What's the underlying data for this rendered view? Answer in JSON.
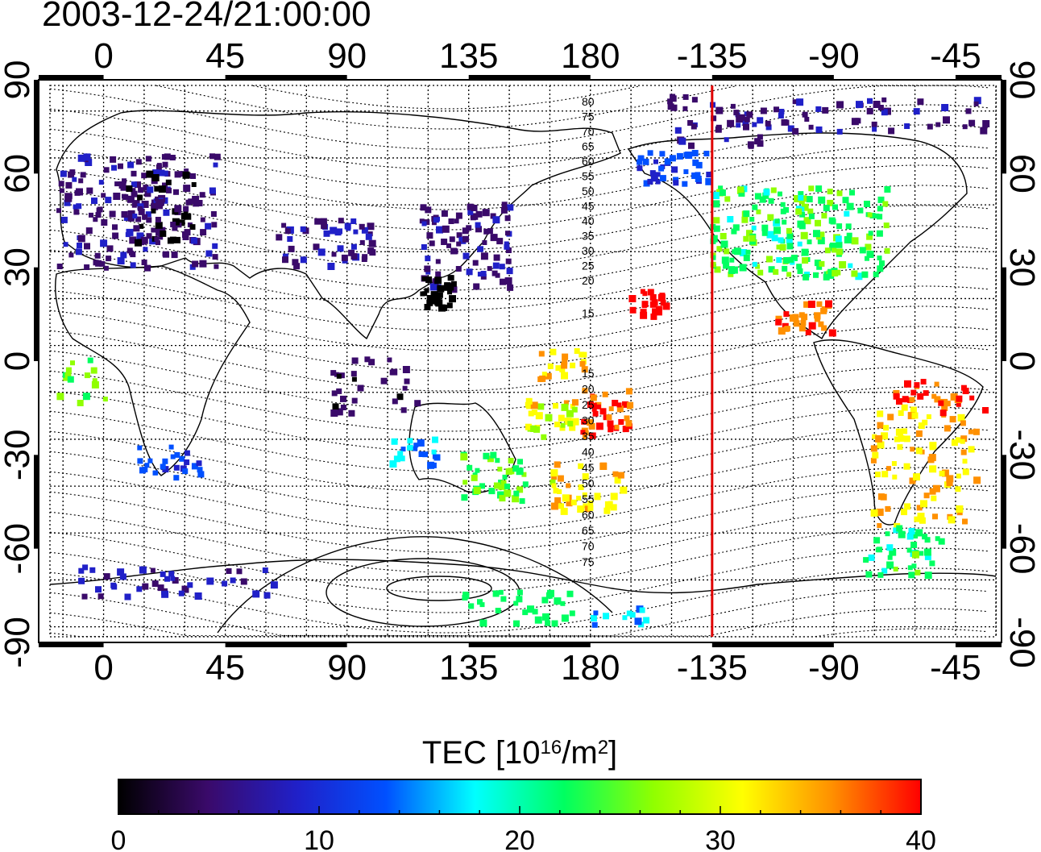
{
  "map": {
    "timestamp": "2003-12-24/21:00:00",
    "lon_ticks_top": [
      "0",
      "45",
      "90",
      "135",
      "180",
      "-135",
      "-90",
      "-45"
    ],
    "lon_ticks_bottom": [
      "0",
      "45",
      "90",
      "135",
      "180",
      "-135",
      "-90",
      "-45"
    ],
    "lat_ticks_left": [
      "90",
      "60",
      "30",
      "0",
      "-30",
      "-60",
      "-90"
    ],
    "lat_ticks_right": [
      "90",
      "60",
      "30",
      "0",
      "-30",
      "-60",
      "-90"
    ],
    "lon_range": [
      -24,
      332
    ],
    "lat_range": [
      -90,
      90
    ],
    "meridian_marker_lon": "-135",
    "maglat_labels_north": [
      "80",
      "75",
      "70",
      "65",
      "60",
      "55",
      "50",
      "45",
      "40",
      "35",
      "30",
      "25",
      "20",
      "15"
    ],
    "maglat_labels_south": [
      "15",
      "20",
      "25",
      "30",
      "35",
      "40",
      "45",
      "50",
      "55",
      "60",
      "65",
      "70",
      "75"
    ]
  },
  "colorbar": {
    "title": "TEC  [10",
    "title_sup1": "16",
    "title_mid": "/m",
    "title_sup2": "2",
    "title_end": "]",
    "ticks": [
      "0",
      "10",
      "20",
      "30",
      "40"
    ],
    "min": 0,
    "max": 40,
    "colors": [
      "#000000",
      "#3a0a6a",
      "#2020c8",
      "#0050ff",
      "#00ffff",
      "#00ff60",
      "#90ff00",
      "#ffff00",
      "#ff9000",
      "#ff0000"
    ]
  }
}
